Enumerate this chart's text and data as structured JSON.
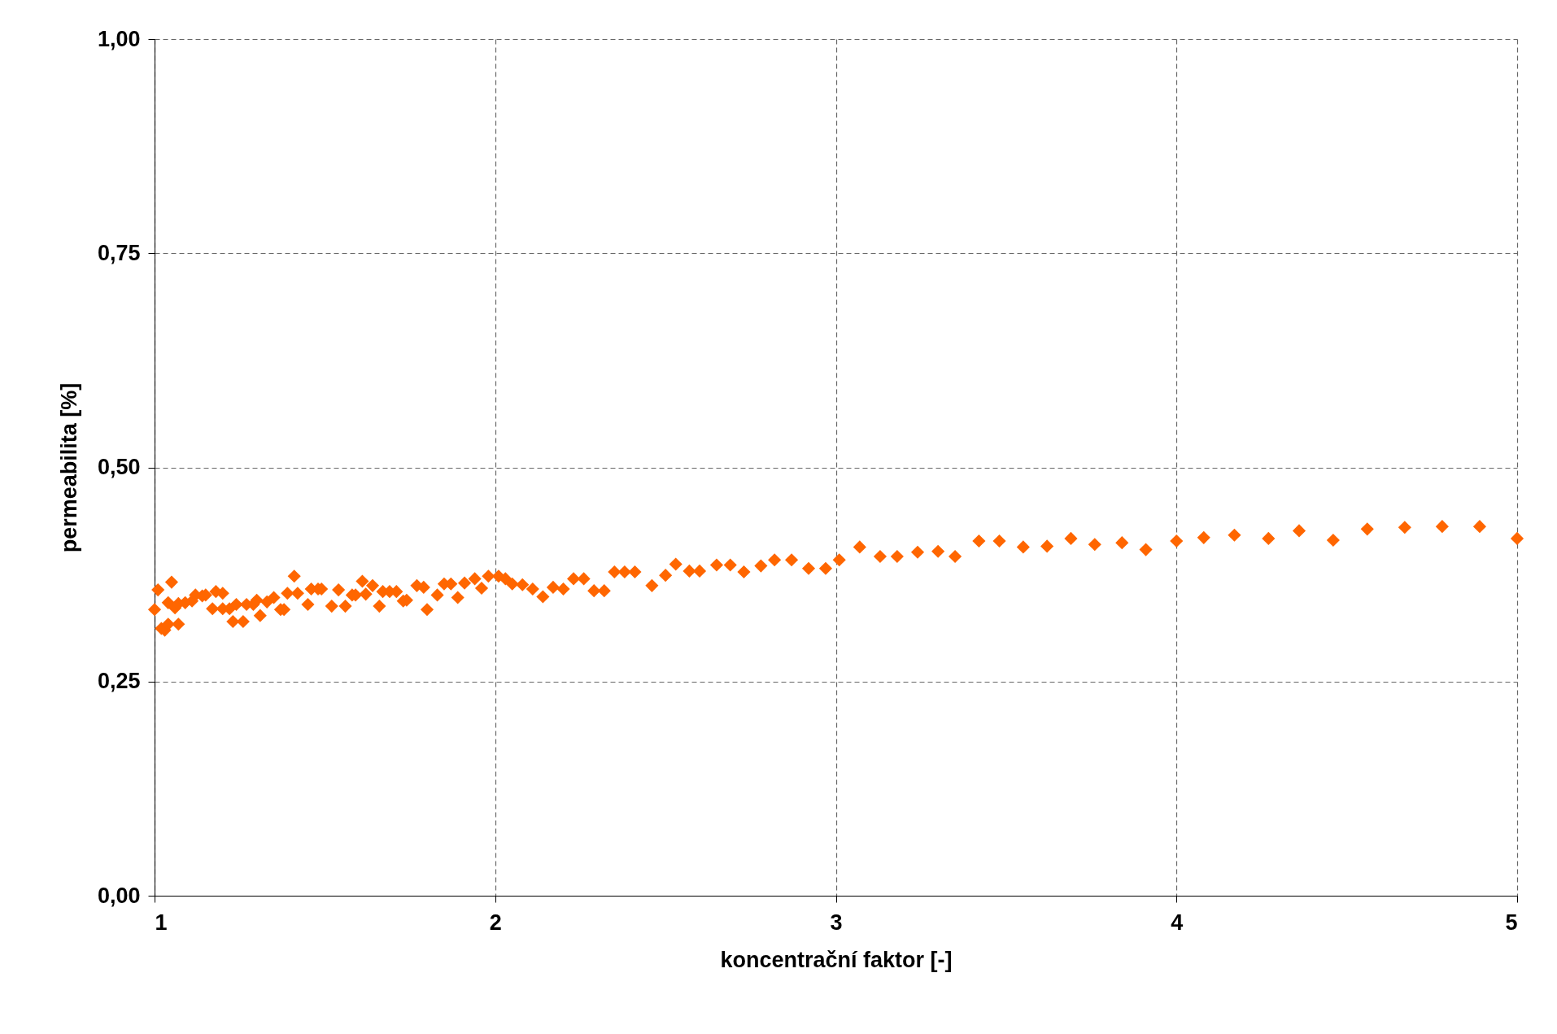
{
  "chart_data": {
    "type": "scatter",
    "xlabel": "koncentrační faktor [-]",
    "ylabel": "permeabilita [%]",
    "x": [
      1.0,
      1.01,
      1.02,
      1.03,
      1.04,
      1.04,
      1.05,
      1.06,
      1.07,
      1.07,
      1.09,
      1.11,
      1.12,
      1.14,
      1.15,
      1.17,
      1.18,
      1.2,
      1.2,
      1.22,
      1.23,
      1.24,
      1.26,
      1.27,
      1.29,
      1.3,
      1.31,
      1.33,
      1.35,
      1.37,
      1.38,
      1.39,
      1.41,
      1.42,
      1.45,
      1.46,
      1.48,
      1.49,
      1.52,
      1.54,
      1.56,
      1.58,
      1.59,
      1.61,
      1.62,
      1.64,
      1.66,
      1.67,
      1.69,
      1.71,
      1.73,
      1.74,
      1.77,
      1.79,
      1.8,
      1.83,
      1.85,
      1.87,
      1.89,
      1.91,
      1.94,
      1.96,
      1.98,
      2.01,
      2.03,
      2.05,
      2.08,
      2.11,
      2.14,
      2.17,
      2.2,
      2.23,
      2.26,
      2.29,
      2.32,
      2.35,
      2.38,
      2.41,
      2.46,
      2.5,
      2.53,
      2.57,
      2.6,
      2.65,
      2.69,
      2.73,
      2.78,
      2.82,
      2.87,
      2.92,
      2.97,
      3.01,
      3.07,
      3.13,
      3.18,
      3.24,
      3.3,
      3.35,
      3.42,
      3.48,
      3.55,
      3.62,
      3.69,
      3.76,
      3.84,
      3.91,
      4.0,
      4.08,
      4.17,
      4.27,
      4.36,
      4.46,
      4.56,
      4.67,
      4.78,
      4.89,
      5.0
    ],
    "values": [
      0.334,
      0.357,
      0.312,
      0.31,
      0.317,
      0.342,
      0.366,
      0.336,
      0.317,
      0.341,
      0.342,
      0.344,
      0.351,
      0.35,
      0.351,
      0.335,
      0.355,
      0.353,
      0.335,
      0.335,
      0.32,
      0.34,
      0.32,
      0.34,
      0.34,
      0.345,
      0.327,
      0.343,
      0.348,
      0.334,
      0.334,
      0.353,
      0.373,
      0.353,
      0.34,
      0.358,
      0.358,
      0.358,
      0.338,
      0.357,
      0.338,
      0.351,
      0.351,
      0.367,
      0.352,
      0.362,
      0.338,
      0.355,
      0.355,
      0.355,
      0.344,
      0.345,
      0.362,
      0.36,
      0.334,
      0.351,
      0.364,
      0.364,
      0.348,
      0.365,
      0.37,
      0.359,
      0.373,
      0.373,
      0.37,
      0.364,
      0.363,
      0.358,
      0.349,
      0.36,
      0.358,
      0.37,
      0.37,
      0.356,
      0.356,
      0.378,
      0.378,
      0.378,
      0.362,
      0.374,
      0.387,
      0.379,
      0.379,
      0.386,
      0.386,
      0.378,
      0.385,
      0.392,
      0.392,
      0.382,
      0.382,
      0.392,
      0.407,
      0.396,
      0.396,
      0.401,
      0.402,
      0.396,
      0.414,
      0.414,
      0.407,
      0.408,
      0.417,
      0.41,
      0.412,
      0.404,
      0.414,
      0.418,
      0.421,
      0.417,
      0.426,
      0.415,
      0.428,
      0.43,
      0.431,
      0.431,
      0.417
    ],
    "color": "#ff6600",
    "marker": "diamond",
    "grid": true,
    "xlim": [
      1,
      5
    ],
    "xticks": [
      1,
      2,
      3,
      4,
      5
    ],
    "ylim": [
      0,
      1
    ],
    "yticks": [
      {
        "value": 0,
        "label": "0,00"
      },
      {
        "value": 0.25,
        "label": "0,25"
      },
      {
        "value": 0.5,
        "label": "0,50"
      },
      {
        "value": 0.75,
        "label": "0,75"
      },
      {
        "value": 1,
        "label": "1,00"
      }
    ]
  }
}
